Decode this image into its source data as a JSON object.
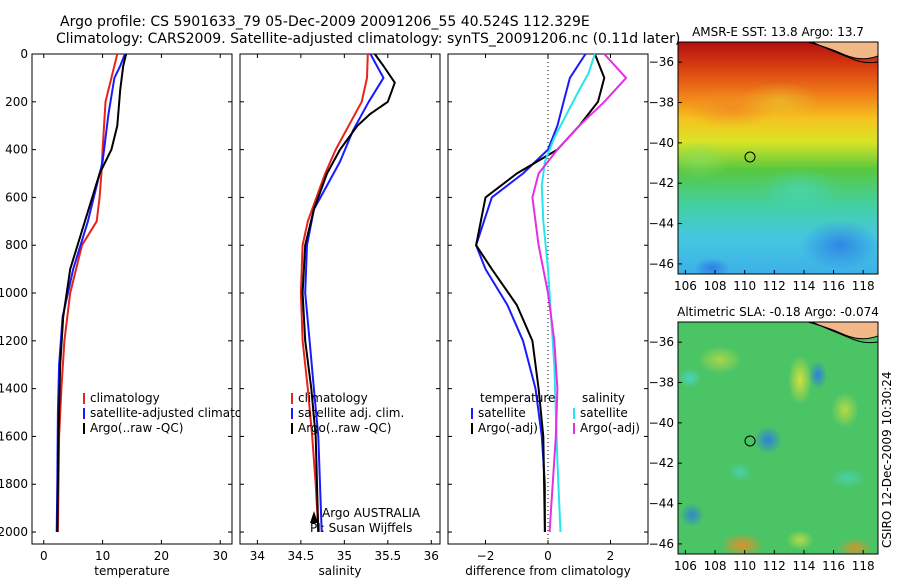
{
  "header": {
    "title_line1": "Argo profile: CS 5901633_79 05-Dec-2009 20091206_55 40.524S 112.329E",
    "title_line2": "Climatology: CARS2009. Satellite-adjusted climatology: synTS_20091206.nc (0.11d later)"
  },
  "colors": {
    "climatology": "#e8231a",
    "satellite": "#1a1aff",
    "argo": "#000000",
    "sal_satellite": "#25e6f0",
    "sal_argo": "#e62ee6"
  },
  "chart_data": [
    {
      "type": "line",
      "id": "temperature-panel",
      "xlabel": "temperature",
      "xlim": [
        -2,
        32
      ],
      "ylim": [
        2050,
        0
      ],
      "xticks": [
        0,
        10,
        20,
        30
      ],
      "yticks": [
        0,
        200,
        400,
        600,
        800,
        1000,
        1200,
        1400,
        1600,
        1800,
        2000
      ],
      "legend": [
        "climatology",
        "satellite-adjusted climatolog",
        "Argo(..raw -QC)"
      ],
      "series": [
        {
          "name": "climatology",
          "color_key": "climatology",
          "x": [
            12.5,
            11.5,
            10.5,
            10.0,
            9.8,
            9.5,
            9.0,
            6.5,
            4.5,
            3.5,
            3.0,
            2.6,
            2.4
          ],
          "y": [
            0,
            100,
            200,
            400,
            500,
            600,
            700,
            800,
            1000,
            1200,
            1400,
            1600,
            2000
          ]
        },
        {
          "name": "satellite-adjusted climatolog",
          "color_key": "satellite",
          "x": [
            13.8,
            13.0,
            12.0,
            11.0,
            10.0,
            7.5,
            5.0,
            3.2,
            2.6,
            2.4,
            2.3,
            2.2
          ],
          "y": [
            0,
            50,
            100,
            250,
            450,
            700,
            900,
            1100,
            1300,
            1500,
            1800,
            2000
          ]
        },
        {
          "name": "Argo(..raw -QC)",
          "color_key": "argo",
          "x": [
            14.0,
            13.5,
            13.0,
            12.5,
            11.5,
            9.5,
            7.0,
            4.5,
            3.3,
            2.8,
            2.5,
            2.3
          ],
          "y": [
            0,
            50,
            150,
            300,
            400,
            500,
            700,
            900,
            1100,
            1300,
            1600,
            2000
          ]
        }
      ]
    },
    {
      "type": "line",
      "id": "salinity-panel",
      "xlabel": "salinity",
      "xlim": [
        33.8,
        36.1
      ],
      "ylim": [
        2050,
        0
      ],
      "xticks": [
        34,
        34.5,
        35,
        35.5,
        36
      ],
      "xticklabels": [
        "34",
        "34.5",
        "35",
        "35.5",
        "36"
      ],
      "legend": [
        "climatology",
        "satellite adj. clim.",
        "Argo(..raw -QC)"
      ],
      "annotation": [
        "Argo AUSTRALIA",
        "PI: Susan Wijffels"
      ],
      "series": [
        {
          "name": "climatology",
          "color_key": "climatology",
          "x": [
            35.27,
            35.26,
            35.2,
            35.05,
            34.9,
            34.78,
            34.68,
            34.58,
            34.52,
            34.5,
            34.52,
            34.58,
            34.63,
            34.67,
            34.7
          ],
          "y": [
            0,
            100,
            200,
            300,
            400,
            500,
            600,
            700,
            800,
            1000,
            1200,
            1400,
            1600,
            1800,
            2000
          ]
        },
        {
          "name": "satellite adj. clim.",
          "color_key": "satellite",
          "x": [
            35.3,
            35.45,
            35.28,
            35.1,
            34.95,
            34.8,
            34.65,
            34.57,
            34.55,
            34.6,
            34.65,
            34.7,
            34.72,
            34.74
          ],
          "y": [
            0,
            100,
            200,
            320,
            450,
            550,
            650,
            800,
            1000,
            1200,
            1400,
            1600,
            1800,
            2000
          ]
        },
        {
          "name": "Argo(..raw -QC)",
          "color_key": "argo",
          "x": [
            35.35,
            35.45,
            35.58,
            35.5,
            35.3,
            35.15,
            34.95,
            34.8,
            34.65,
            34.55,
            34.52,
            34.55,
            34.62,
            34.67,
            34.7
          ],
          "y": [
            0,
            50,
            120,
            200,
            250,
            300,
            400,
            500,
            650,
            800,
            1000,
            1200,
            1400,
            1600,
            2000
          ]
        }
      ]
    },
    {
      "type": "line",
      "id": "difference-panel",
      "xlabel": "difference from climatology",
      "xlim": [
        -3.2,
        3.2
      ],
      "ylim": [
        2050,
        0
      ],
      "xticks": [
        -2,
        0,
        2
      ],
      "zero_line": 0,
      "legend_left": [
        "temperature",
        "satellite",
        "Argo(-adj)"
      ],
      "legend_right": [
        "salinity",
        "satellite",
        "Argo(-adj)"
      ],
      "series": [
        {
          "name": "temperature satellite",
          "color_key": "satellite",
          "x": [
            1.2,
            0.7,
            0.5,
            0.3,
            0.0,
            -0.8,
            -1.8,
            -2.3,
            -2.0,
            -1.3,
            -0.8,
            -0.4,
            -0.2,
            -0.1,
            -0.1
          ],
          "y": [
            0,
            100,
            200,
            300,
            400,
            500,
            600,
            800,
            900,
            1050,
            1200,
            1400,
            1600,
            1800,
            2000
          ]
        },
        {
          "name": "temperature Argo(-adj)",
          "color_key": "argo",
          "x": [
            1.5,
            1.8,
            1.6,
            1.0,
            0.3,
            -1.0,
            -2.0,
            -2.3,
            -1.8,
            -1.0,
            -0.5,
            -0.3,
            -0.15,
            -0.1
          ],
          "y": [
            0,
            100,
            200,
            300,
            400,
            500,
            600,
            800,
            900,
            1050,
            1200,
            1400,
            1600,
            2000
          ]
        },
        {
          "name": "salinity satellite",
          "color_key": "sal_satellite",
          "x": [
            1.5,
            1.3,
            1.0,
            0.6,
            0.2,
            -0.1,
            -0.2,
            -0.15,
            0.0,
            0.1,
            0.2,
            0.25,
            0.3,
            0.35,
            0.4
          ],
          "y": [
            0,
            80,
            150,
            250,
            350,
            450,
            550,
            700,
            900,
            1100,
            1300,
            1500,
            1700,
            1850,
            2000
          ]
        },
        {
          "name": "salinity Argo(-adj)",
          "color_key": "sal_argo",
          "x": [
            1.8,
            2.5,
            1.8,
            1.0,
            0.3,
            -0.3,
            -0.5,
            -0.3,
            0.0,
            0.2,
            0.3,
            0.25,
            0.15,
            0.1,
            0.05
          ],
          "y": [
            0,
            100,
            200,
            300,
            400,
            500,
            600,
            800,
            1000,
            1200,
            1400,
            1600,
            1800,
            1900,
            2000
          ]
        }
      ]
    },
    {
      "type": "heatmap",
      "id": "sst-map",
      "title": "AMSR-E SST: 13.8 Argo: 13.7",
      "xticks": [
        106,
        108,
        110,
        112,
        114,
        116,
        118
      ],
      "yticks": [
        -36,
        -38,
        -40,
        -42,
        -44,
        -46
      ],
      "xlim": [
        105.5,
        119
      ],
      "ylim": [
        -46.5,
        -35
      ],
      "marker": {
        "lon": 112.3,
        "lat": -40.5
      }
    },
    {
      "type": "heatmap",
      "id": "sla-map",
      "title": "Altimetric SLA: -0.18 Argo: -0.074",
      "xticks": [
        106,
        108,
        110,
        112,
        114,
        116,
        118
      ],
      "yticks": [
        -36,
        -38,
        -40,
        -42,
        -44,
        -46
      ],
      "xlim": [
        105.5,
        119
      ],
      "ylim": [
        -46.5,
        -35
      ],
      "marker": {
        "lon": 112.3,
        "lat": -40.5
      }
    }
  ],
  "side_label": "CSIRO 12-Dec-2009 10:30:24"
}
